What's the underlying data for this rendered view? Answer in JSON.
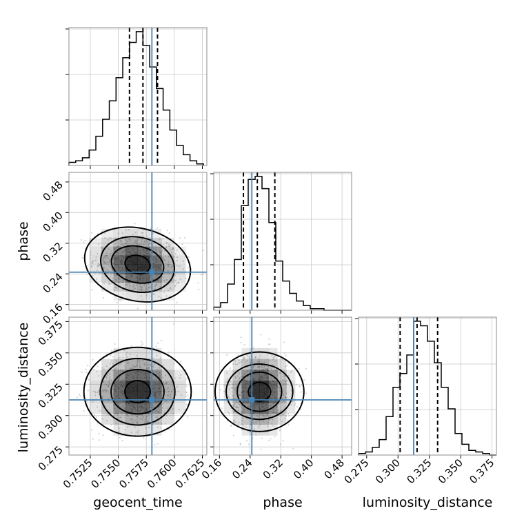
{
  "chart_data": {
    "type": "corner",
    "parameters": [
      "geocent_time",
      "phase",
      "luminosity_distance"
    ],
    "labels": {
      "geocent_time": "geocent_time",
      "phase": "phase",
      "luminosity_distance": "luminosity_distance"
    },
    "ranges": {
      "geocent_time": [
        0.7506,
        0.7629
      ],
      "phase": [
        0.145,
        0.505
      ],
      "luminosity_distance": [
        0.2685,
        0.3785
      ]
    },
    "ticks": {
      "geocent_time": [
        "0.7525",
        "0.7550",
        "0.7575",
        "0.7600",
        "0.7625"
      ],
      "phase": [
        "0.16",
        "0.24",
        "0.32",
        "0.40",
        "0.48"
      ],
      "luminosity_distance": [
        "0.275",
        "0.300",
        "0.325",
        "0.350",
        "0.375"
      ]
    },
    "truths": {
      "geocent_time": 0.758,
      "phase": 0.2445,
      "luminosity_distance": 0.3125
    },
    "quantiles": {
      "geocent_time": [
        0.756,
        0.7572,
        0.7585
      ],
      "phase": [
        0.2225,
        0.2588,
        0.3045
      ],
      "luminosity_distance": [
        0.3017,
        0.3152,
        0.3316
      ]
    },
    "histograms": {
      "geocent_time": {
        "edges": [
          0.7506,
          0.7512,
          0.7518,
          0.7524,
          0.753,
          0.7536,
          0.7542,
          0.7548,
          0.7554,
          0.756,
          0.7566,
          0.7572,
          0.7578,
          0.7584,
          0.759,
          0.7596,
          0.7602,
          0.7608,
          0.7614,
          0.762,
          0.7626
        ],
        "counts": [
          2,
          3,
          5,
          10,
          19,
          30,
          42,
          57,
          70,
          80,
          87,
          78,
          64,
          50,
          36,
          23,
          13,
          7,
          3,
          1
        ]
      },
      "phase": {
        "edges": [
          0.145,
          0.163,
          0.181,
          0.199,
          0.217,
          0.235,
          0.253,
          0.271,
          0.289,
          0.307,
          0.325,
          0.343,
          0.361,
          0.379,
          0.397,
          0.415,
          0.433,
          0.451,
          0.469,
          0.487,
          0.505
        ],
        "counts": [
          2,
          5,
          17,
          33,
          68,
          85,
          87,
          79,
          57,
          32,
          19,
          11,
          6,
          3,
          1,
          1,
          0,
          0,
          0,
          0
        ]
      },
      "luminosity_distance": {
        "edges": [
          0.2685,
          0.274,
          0.2795,
          0.285,
          0.2905,
          0.296,
          0.3015,
          0.307,
          0.3125,
          0.318,
          0.3235,
          0.329,
          0.3345,
          0.34,
          0.3455,
          0.351,
          0.3565,
          0.362,
          0.3675,
          0.373,
          0.3785
        ],
        "counts": [
          1,
          2,
          5,
          10,
          25,
          44,
          53,
          65,
          87,
          84,
          74,
          60,
          44,
          30,
          14,
          7,
          3,
          2,
          1,
          0
        ]
      }
    },
    "correlations": {
      "phase|geocent_time": -0.15,
      "luminosity_distance|geocent_time": 0.0,
      "luminosity_distance|phase": 0.0
    },
    "colors": {
      "truth": "#4682b4",
      "histogram": "#000000",
      "grid": "#c8c8c8",
      "density": "#000000"
    },
    "grid": true
  }
}
